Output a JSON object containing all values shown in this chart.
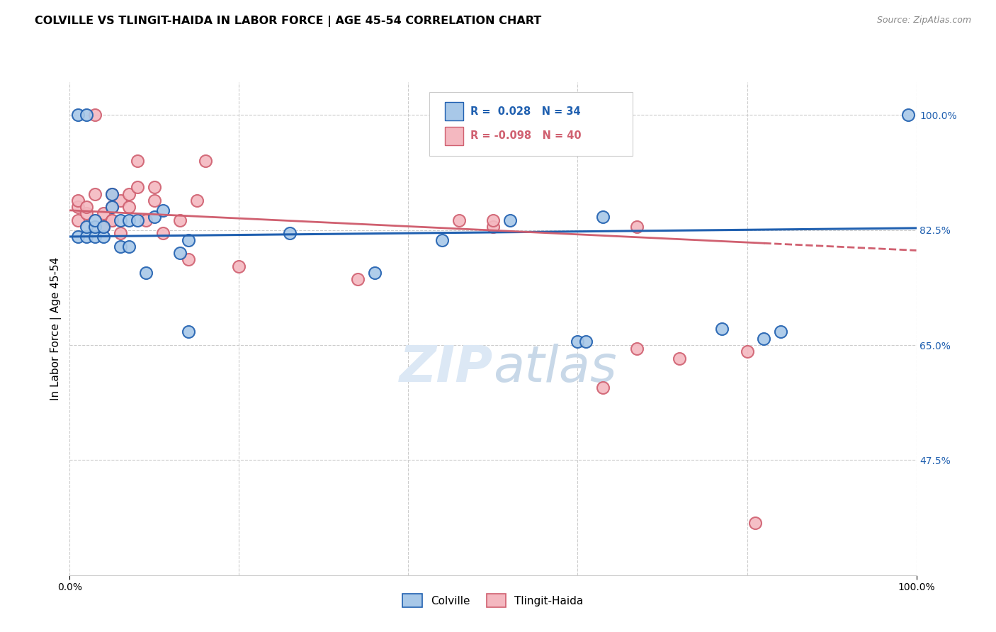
{
  "title": "COLVILLE VS TLINGIT-HAIDA IN LABOR FORCE | AGE 45-54 CORRELATION CHART",
  "source": "Source: ZipAtlas.com",
  "ylabel": "In Labor Force | Age 45-54",
  "xlim": [
    0.0,
    1.0
  ],
  "ylim": [
    0.3,
    1.05
  ],
  "ytick_labels": [
    "47.5%",
    "65.0%",
    "82.5%",
    "100.0%"
  ],
  "ytick_values": [
    0.475,
    0.65,
    0.825,
    1.0
  ],
  "xtick_labels": [
    "0.0%",
    "100.0%"
  ],
  "xtick_values": [
    0.0,
    1.0
  ],
  "blue_color": "#a8c8e8",
  "pink_color": "#f4b8c0",
  "line_blue": "#2060b0",
  "line_pink": "#d06070",
  "watermark_color": "#dce8f5",
  "grid_color": "#cccccc",
  "bg_color": "#ffffff",
  "colville_x": [
    0.01,
    0.01,
    0.02,
    0.02,
    0.02,
    0.03,
    0.03,
    0.03,
    0.04,
    0.04,
    0.05,
    0.05,
    0.06,
    0.06,
    0.07,
    0.07,
    0.08,
    0.09,
    0.1,
    0.11,
    0.13,
    0.14,
    0.14,
    0.26,
    0.36,
    0.44,
    0.52,
    0.6,
    0.61,
    0.63,
    0.77,
    0.82,
    0.84,
    0.99
  ],
  "colville_y": [
    0.815,
    1.0,
    0.815,
    0.83,
    1.0,
    0.815,
    0.83,
    0.84,
    0.815,
    0.83,
    0.86,
    0.88,
    0.8,
    0.84,
    0.8,
    0.84,
    0.84,
    0.76,
    0.845,
    0.855,
    0.79,
    0.67,
    0.81,
    0.82,
    0.76,
    0.81,
    0.84,
    0.655,
    0.655,
    0.845,
    0.675,
    0.66,
    0.67,
    1.0
  ],
  "tlingit_x": [
    0.01,
    0.01,
    0.01,
    0.02,
    0.02,
    0.03,
    0.03,
    0.04,
    0.04,
    0.04,
    0.05,
    0.05,
    0.05,
    0.05,
    0.06,
    0.06,
    0.07,
    0.07,
    0.08,
    0.08,
    0.09,
    0.1,
    0.1,
    0.11,
    0.13,
    0.14,
    0.15,
    0.16,
    0.2,
    0.34,
    0.46,
    0.5,
    0.5,
    0.63,
    0.67,
    0.67,
    0.72,
    0.8,
    0.81
  ],
  "tlingit_y": [
    0.84,
    0.86,
    0.87,
    0.85,
    0.86,
    0.88,
    1.0,
    0.83,
    0.83,
    0.85,
    0.84,
    0.84,
    0.86,
    0.88,
    0.82,
    0.87,
    0.86,
    0.88,
    0.89,
    0.93,
    0.84,
    0.87,
    0.89,
    0.82,
    0.84,
    0.78,
    0.87,
    0.93,
    0.77,
    0.75,
    0.84,
    0.83,
    0.84,
    0.585,
    0.645,
    0.83,
    0.63,
    0.64,
    0.38
  ],
  "trend_blue_x0": 0.0,
  "trend_blue_x1": 1.0,
  "trend_blue_y0": 0.815,
  "trend_blue_y1": 0.828,
  "trend_pink_x0": 0.0,
  "trend_pink_x1": 0.82,
  "trend_pink_y0": 0.855,
  "trend_pink_y1": 0.805,
  "trend_pink_dash_x0": 0.82,
  "trend_pink_dash_x1": 1.0,
  "trend_pink_dash_y0": 0.805,
  "trend_pink_dash_y1": 0.794
}
